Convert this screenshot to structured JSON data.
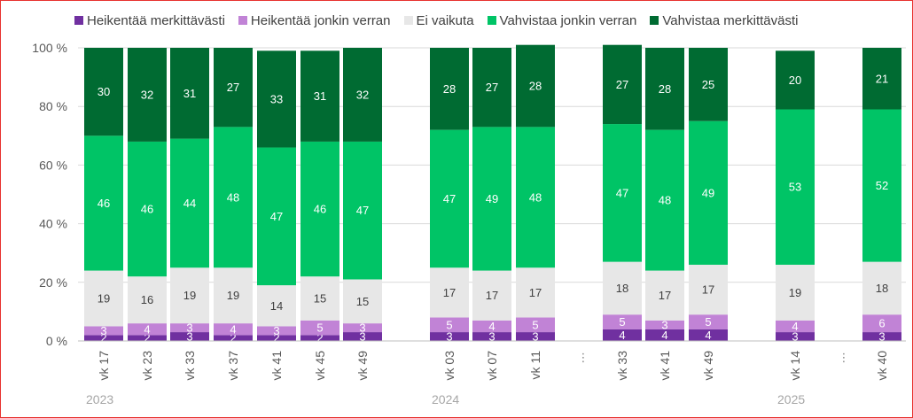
{
  "chart_data": {
    "type": "bar",
    "stacked": true,
    "y_unit": "%",
    "ylim": [
      0,
      100
    ],
    "y_ticks": [
      "0 %",
      "20 %",
      "40 %",
      "60 %",
      "80 %",
      "100 %"
    ],
    "grid": true,
    "legend_position": "top",
    "categories": [
      "vk 17",
      "vk 23",
      "vk 33",
      "vk 37",
      "vk 41",
      "vk 45",
      "vk 49",
      "vk 03",
      "vk 07",
      "vk 11",
      "vk 33",
      "vk 41",
      "vk 49",
      "vk 14",
      "vk 40"
    ],
    "years": [
      {
        "label": "2023",
        "first_index": 0
      },
      {
        "label": "2024",
        "first_index": 7
      },
      {
        "label": "2025",
        "first_index": 13
      }
    ],
    "ellipsis_text": "⋮",
    "series": [
      {
        "name": "Heikentää merkittävästi",
        "color": "#7030a0",
        "values": [
          2,
          2,
          3,
          2,
          2,
          2,
          3,
          3,
          3,
          3,
          4,
          4,
          4,
          3,
          3
        ]
      },
      {
        "name": "Heikentää jonkin verran",
        "color": "#c183d6",
        "values": [
          3,
          4,
          3,
          4,
          3,
          5,
          3,
          5,
          4,
          5,
          5,
          3,
          5,
          4,
          6
        ]
      },
      {
        "name": "Ei vaikuta",
        "color": "#e7e7e7",
        "values": [
          19,
          16,
          19,
          19,
          14,
          15,
          15,
          17,
          17,
          17,
          18,
          17,
          17,
          19,
          18
        ]
      },
      {
        "name": "Vahvistaa jonkin verran",
        "color": "#00c466",
        "values": [
          46,
          46,
          44,
          48,
          47,
          46,
          47,
          47,
          49,
          48,
          47,
          48,
          49,
          53,
          52
        ]
      },
      {
        "name": "Vahvistaa merkittävästi",
        "color": "#006b32",
        "values": [
          30,
          32,
          31,
          27,
          33,
          31,
          32,
          28,
          27,
          28,
          27,
          28,
          25,
          20,
          21
        ]
      }
    ]
  }
}
